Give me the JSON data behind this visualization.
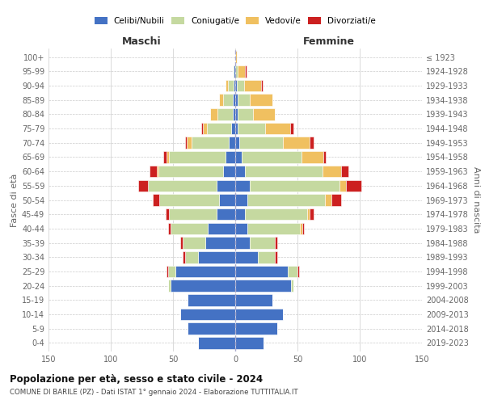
{
  "age_groups": [
    "0-4",
    "5-9",
    "10-14",
    "15-19",
    "20-24",
    "25-29",
    "30-34",
    "35-39",
    "40-44",
    "45-49",
    "50-54",
    "55-59",
    "60-64",
    "65-69",
    "70-74",
    "75-79",
    "80-84",
    "85-89",
    "90-94",
    "95-99",
    "100+"
  ],
  "birth_years": [
    "2019-2023",
    "2014-2018",
    "2009-2013",
    "2004-2008",
    "1999-2003",
    "1994-1998",
    "1989-1993",
    "1984-1988",
    "1979-1983",
    "1974-1978",
    "1969-1973",
    "1964-1968",
    "1959-1963",
    "1954-1958",
    "1949-1953",
    "1944-1948",
    "1939-1943",
    "1934-1938",
    "1929-1933",
    "1924-1928",
    "≤ 1923"
  ],
  "colors": {
    "celibi": "#4472c4",
    "coniugati": "#c5d9a0",
    "vedovi": "#f0c060",
    "divorziati": "#cc2020"
  },
  "maschi": {
    "celibi": [
      30,
      38,
      44,
      38,
      52,
      48,
      30,
      24,
      22,
      15,
      13,
      15,
      10,
      8,
      5,
      3,
      2,
      2,
      1,
      1,
      0
    ],
    "coniugati": [
      0,
      0,
      0,
      0,
      2,
      6,
      10,
      18,
      30,
      38,
      48,
      55,
      52,
      45,
      30,
      20,
      12,
      8,
      5,
      1,
      0
    ],
    "vedovi": [
      0,
      0,
      0,
      0,
      0,
      0,
      0,
      0,
      0,
      0,
      0,
      0,
      1,
      2,
      4,
      3,
      6,
      3,
      2,
      0,
      0
    ],
    "divorziati": [
      0,
      0,
      0,
      0,
      0,
      1,
      2,
      2,
      2,
      3,
      5,
      8,
      6,
      3,
      1,
      1,
      0,
      0,
      0,
      0,
      0
    ]
  },
  "femmine": {
    "celibi": [
      23,
      34,
      38,
      30,
      45,
      42,
      18,
      12,
      10,
      8,
      10,
      12,
      8,
      5,
      3,
      2,
      2,
      2,
      1,
      0,
      0
    ],
    "coniugati": [
      0,
      0,
      0,
      0,
      2,
      8,
      14,
      20,
      42,
      50,
      62,
      72,
      62,
      48,
      35,
      22,
      12,
      10,
      6,
      2,
      0
    ],
    "vedovi": [
      0,
      0,
      0,
      0,
      0,
      0,
      0,
      0,
      2,
      2,
      5,
      5,
      15,
      18,
      22,
      20,
      18,
      18,
      14,
      6,
      1
    ],
    "divorziati": [
      0,
      0,
      0,
      0,
      0,
      1,
      2,
      2,
      1,
      3,
      8,
      12,
      6,
      2,
      3,
      3,
      0,
      0,
      1,
      1,
      0
    ]
  },
  "xlim": 150,
  "title": "Popolazione per età, sesso e stato civile - 2024",
  "subtitle": "COMUNE DI BARILE (PZ) - Dati ISTAT 1° gennaio 2024 - Elaborazione TUTTITALIA.IT",
  "xlabel_left": "Maschi",
  "xlabel_right": "Femmine",
  "ylabel": "Fasce di età",
  "ylabel_right": "Anni di nascita",
  "legend_labels": [
    "Celibi/Nubili",
    "Coniugati/e",
    "Vedovi/e",
    "Divorziati/e"
  ],
  "bg_color": "#ffffff",
  "grid_color": "#cccccc"
}
